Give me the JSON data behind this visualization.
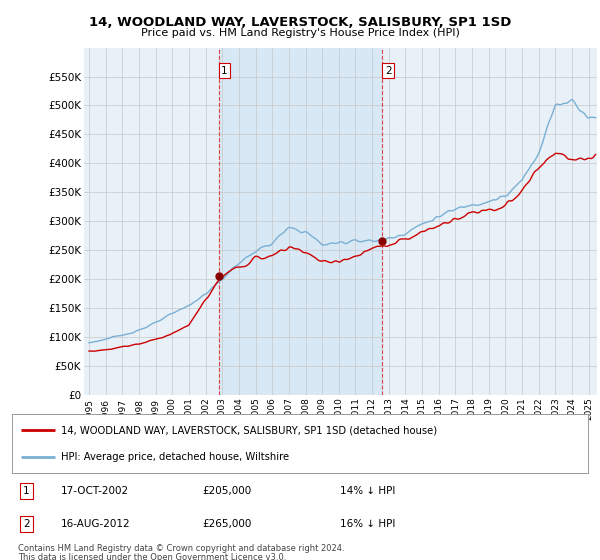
{
  "title": "14, WOODLAND WAY, LAVERSTOCK, SALISBURY, SP1 1SD",
  "subtitle": "Price paid vs. HM Land Registry's House Price Index (HPI)",
  "background_color": "#ffffff",
  "plot_bg_color": "#e8f0f8",
  "grid_color": "#c8c8c8",
  "sale1_date": "17-OCT-2002",
  "sale1_price": 205000,
  "sale1_year": 2002.79,
  "sale2_date": "16-AUG-2012",
  "sale2_price": 265000,
  "sale2_year": 2012.62,
  "legend_property": "14, WOODLAND WAY, LAVERSTOCK, SALISBURY, SP1 1SD (detached house)",
  "legend_hpi": "HPI: Average price, detached house, Wiltshire",
  "footnote1": "Contains HM Land Registry data © Crown copyright and database right 2024.",
  "footnote2": "This data is licensed under the Open Government Licence v3.0.",
  "property_line_color": "#cc0000",
  "hpi_line_color": "#7ab0d4",
  "sale_marker_color": "#880000",
  "vline_color": "#dd4444",
  "shade_color": "#d8e8f4",
  "xlim_left": 1994.7,
  "xlim_right": 2025.5,
  "ylim_bottom": 0,
  "ylim_top": 600000
}
